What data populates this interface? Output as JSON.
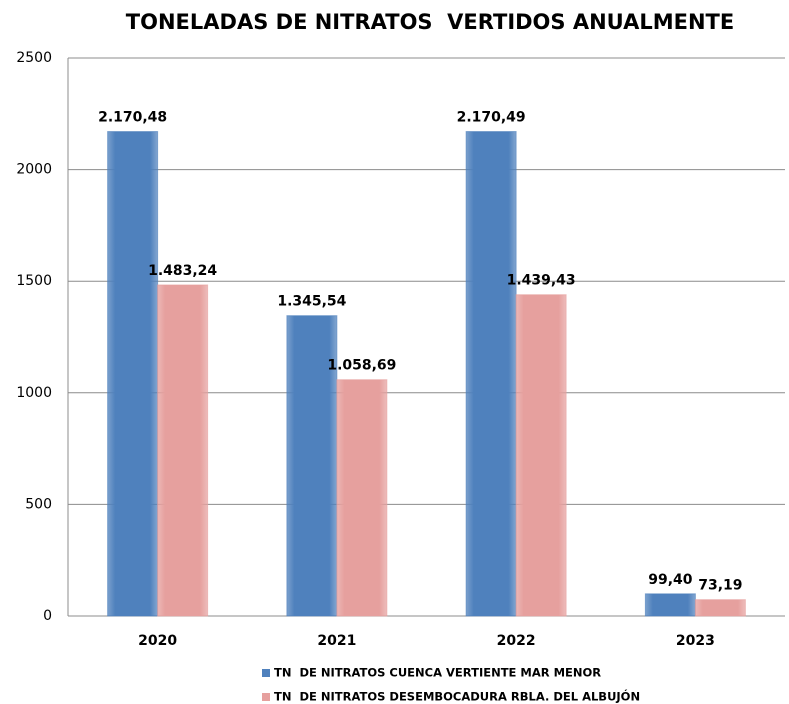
{
  "chart_data": {
    "type": "bar",
    "title": "TONELADAS DE NITRATOS  VERTIDOS ANUALMENTE",
    "categories": [
      "2020",
      "2021",
      "2022",
      "2023"
    ],
    "series": [
      {
        "name": "TN  DE NITRATOS CUENCA VERTIENTE MAR MENOR",
        "color": "#4f81bd",
        "values": [
          2170.48,
          1345.54,
          2170.49,
          99.4
        ],
        "value_labels": [
          "2.170,48",
          "1.345,54",
          "2.170,49",
          "99,40"
        ]
      },
      {
        "name": "TN  DE NITRATOS DESEMBOCADURA RBLA. DEL ALBUJÓN",
        "color": "#e6a09e",
        "values": [
          1483.24,
          1058.69,
          1439.43,
          73.19
        ],
        "value_labels": [
          "1.483,24",
          "1.058,69",
          "1.439,43",
          "73,19"
        ]
      }
    ],
    "ylim": [
      0,
      2500
    ],
    "yticks": [
      0,
      500,
      1000,
      1500,
      2000,
      2500
    ],
    "grid": true,
    "legend": "bottom"
  }
}
